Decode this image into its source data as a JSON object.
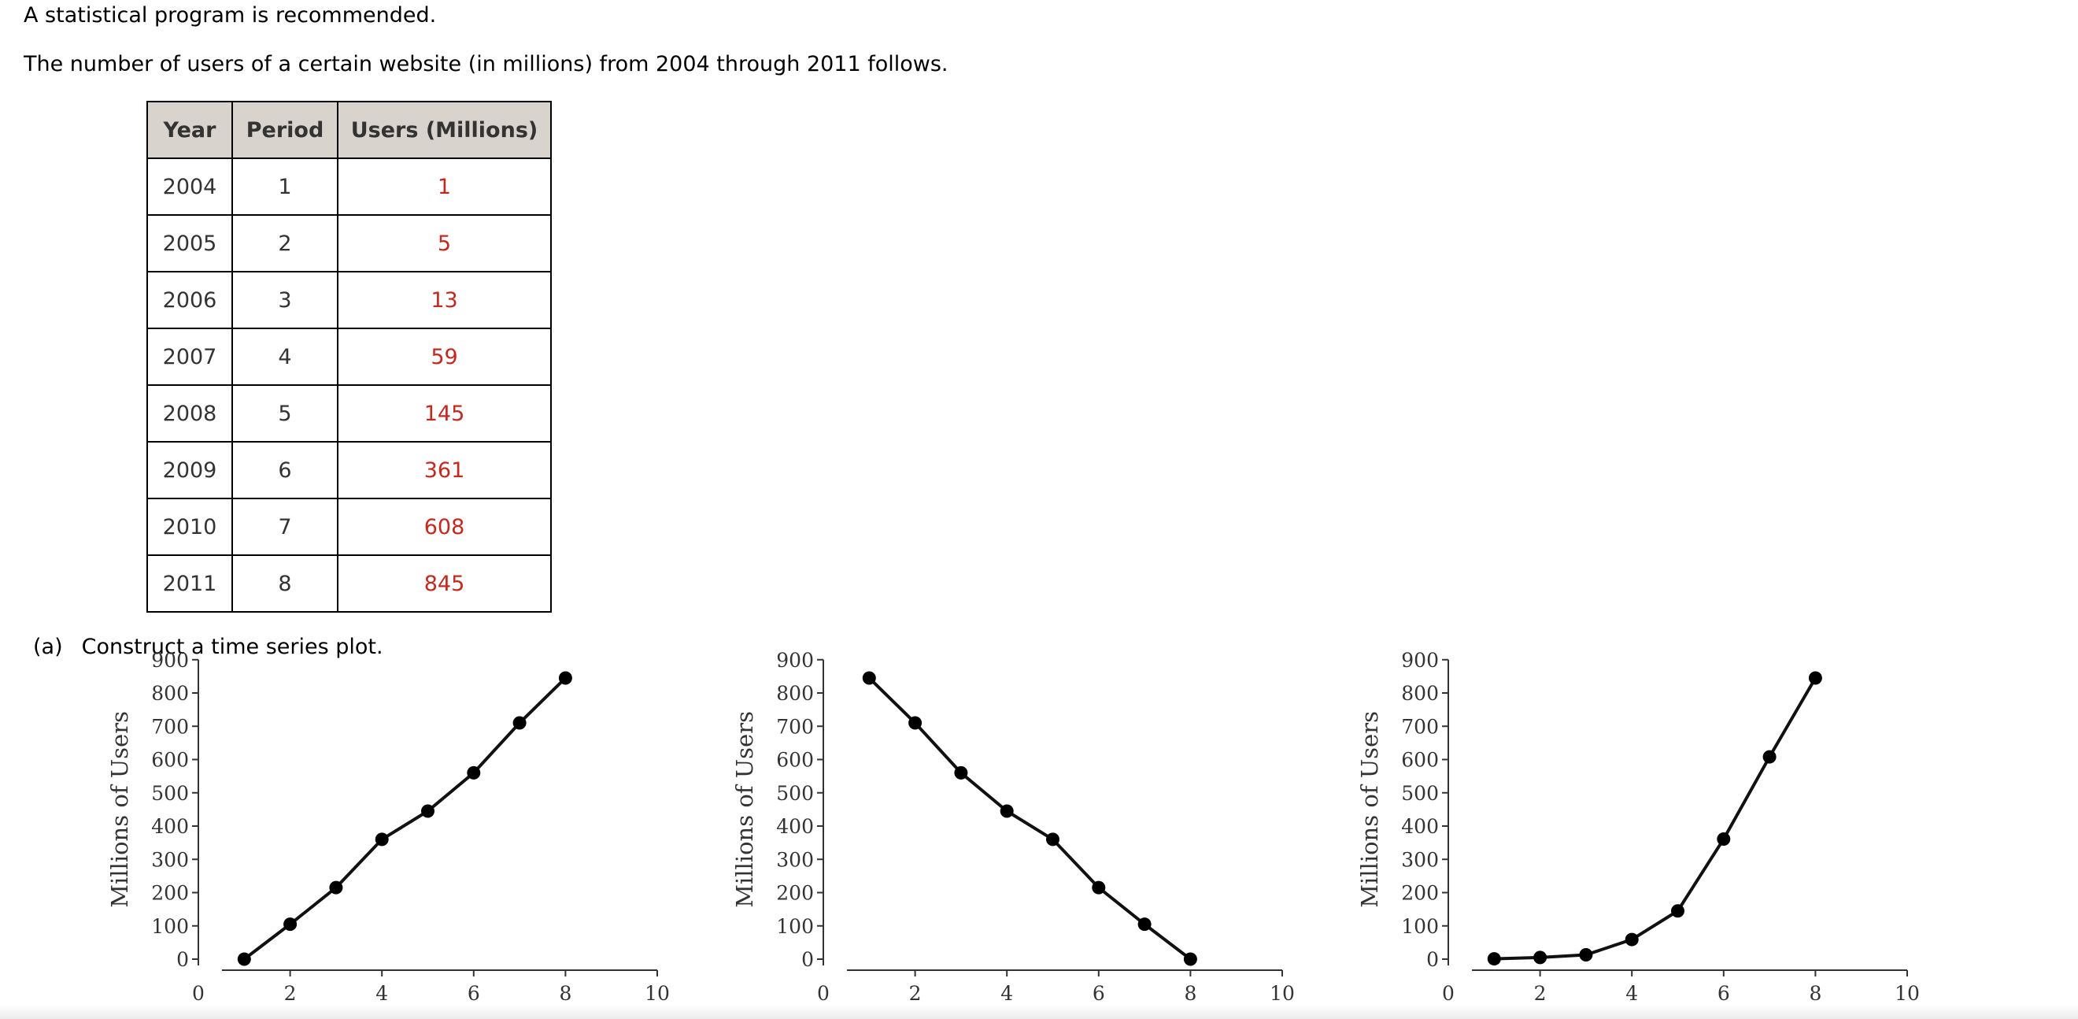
{
  "intro": {
    "note": "A statistical program is recommended.",
    "description": "The number of users of a certain website (in millions) from 2004 through 2011 follows."
  },
  "table": {
    "headers": [
      "Year",
      "Period",
      "Users (Millions)"
    ],
    "rows": [
      [
        "2004",
        "1",
        "1"
      ],
      [
        "2005",
        "2",
        "5"
      ],
      [
        "2006",
        "3",
        "13"
      ],
      [
        "2007",
        "4",
        "59"
      ],
      [
        "2008",
        "5",
        "145"
      ],
      [
        "2009",
        "6",
        "361"
      ],
      [
        "2010",
        "7",
        "608"
      ],
      [
        "2011",
        "8",
        "845"
      ]
    ],
    "value_color": "#c8271e",
    "header_bg": "#d8d4cd"
  },
  "part_a": {
    "label": "(a)",
    "text": "Construct a time series plot."
  },
  "chart_data": [
    {
      "type": "line",
      "ylabel": "Millions of Users",
      "xlabel": "",
      "xlim": [
        0,
        10
      ],
      "ylim": [
        0,
        900
      ],
      "xticks": [
        0,
        2,
        4,
        6,
        8,
        10
      ],
      "yticks": [
        0,
        100,
        200,
        300,
        400,
        500,
        600,
        700,
        800,
        900
      ],
      "x": [
        1,
        2,
        3,
        4,
        5,
        6,
        7,
        8
      ],
      "y": [
        0,
        105,
        215,
        360,
        445,
        560,
        710,
        845
      ]
    },
    {
      "type": "line",
      "ylabel": "Millions of Users",
      "xlabel": "",
      "xlim": [
        0,
        10
      ],
      "ylim": [
        0,
        900
      ],
      "xticks": [
        0,
        2,
        4,
        6,
        8,
        10
      ],
      "yticks": [
        0,
        100,
        200,
        300,
        400,
        500,
        600,
        700,
        800,
        900
      ],
      "x": [
        1,
        2,
        3,
        4,
        5,
        6,
        7,
        8
      ],
      "y": [
        845,
        710,
        560,
        445,
        360,
        215,
        105,
        0
      ]
    },
    {
      "type": "line",
      "ylabel": "Millions of Users",
      "xlabel": "",
      "xlim": [
        0,
        10
      ],
      "ylim": [
        0,
        900
      ],
      "xticks": [
        0,
        2,
        4,
        6,
        8,
        10
      ],
      "yticks": [
        0,
        100,
        200,
        300,
        400,
        500,
        600,
        700,
        800,
        900
      ],
      "x": [
        1,
        2,
        3,
        4,
        5,
        6,
        7,
        8
      ],
      "y": [
        1,
        5,
        13,
        59,
        145,
        361,
        608,
        845
      ]
    }
  ]
}
